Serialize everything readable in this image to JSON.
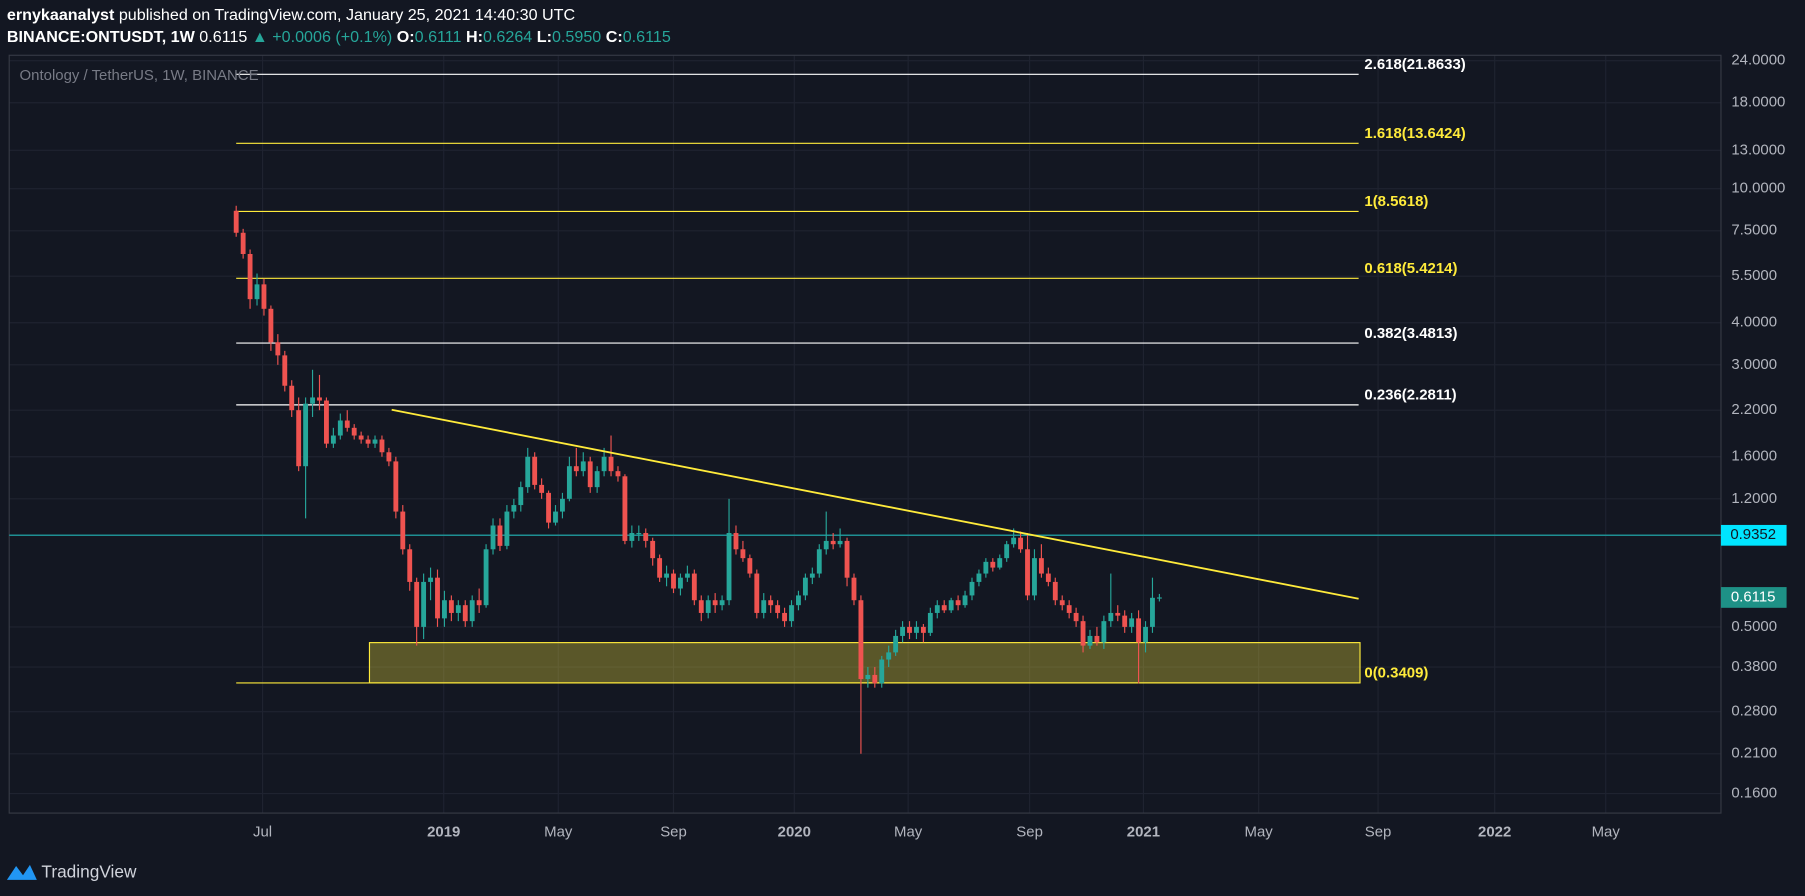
{
  "header": {
    "publisher": "ernykaanalyst",
    "published": "published on TradingView.com, January 25, 2021 14:40:30 UTC",
    "symbol": "BINANCE:ONTUSDT, 1W",
    "price": "0.6115",
    "change": "▲ +0.0006 (+0.1%)",
    "o_label": "O:",
    "o": "0.6111",
    "h_label": "H:",
    "h": "0.6264",
    "l_label": "L:",
    "l": "0.5950",
    "c_label": "C:",
    "c": "0.6115"
  },
  "footer": {
    "brand": "TradingView"
  },
  "chart_data": {
    "type": "candlestick",
    "legend": "Ontology / TetherUS, 1W, BINANCE",
    "log_scale": true,
    "grid": true,
    "up_color": "#26a69a",
    "down_color": "#ef5350",
    "ylim": [
      0.14,
      24.9
    ],
    "yticks": [
      {
        "value": 24,
        "label": "24.0000"
      },
      {
        "value": 18,
        "label": "18.0000"
      },
      {
        "value": 13,
        "label": "13.0000"
      },
      {
        "value": 10,
        "label": "10.0000"
      },
      {
        "value": 7.5,
        "label": "7.5000"
      },
      {
        "value": 5.5,
        "label": "5.5000"
      },
      {
        "value": 4,
        "label": "4.0000"
      },
      {
        "value": 3,
        "label": "3.0000"
      },
      {
        "value": 2.2,
        "label": "2.2000"
      },
      {
        "value": 1.6,
        "label": "1.6000"
      },
      {
        "value": 1.2,
        "label": "1.2000"
      },
      {
        "value": 0.5,
        "label": "0.5000"
      },
      {
        "value": 0.38,
        "label": "0.3800"
      },
      {
        "value": 0.28,
        "label": "0.2800"
      },
      {
        "value": 0.21,
        "label": "0.2100"
      },
      {
        "value": 0.16,
        "label": "0.1600"
      }
    ],
    "xlim": [
      -32.7,
      213.9
    ],
    "xticks": [
      {
        "value": 3.8,
        "label": "Jul"
      },
      {
        "value": 29.9,
        "label": "2019"
      },
      {
        "value": 46.4,
        "label": "May"
      },
      {
        "value": 63.0,
        "label": "Sep"
      },
      {
        "value": 80.4,
        "label": "2020"
      },
      {
        "value": 96.8,
        "label": "May"
      },
      {
        "value": 114.3,
        "label": "Sep"
      },
      {
        "value": 130.7,
        "label": "2021"
      },
      {
        "value": 147.3,
        "label": "May"
      },
      {
        "value": 164.5,
        "label": "Sep"
      },
      {
        "value": 181.3,
        "label": "2022"
      },
      {
        "value": 197.3,
        "label": "May"
      }
    ],
    "ohlc": [
      [
        8.6,
        8.9,
        7.2,
        7.4
      ],
      [
        7.4,
        7.6,
        6.2,
        6.4
      ],
      [
        6.4,
        6.6,
        4.4,
        4.7
      ],
      [
        4.7,
        5.6,
        4.5,
        5.2
      ],
      [
        5.2,
        5.4,
        4.2,
        4.4
      ],
      [
        4.4,
        4.5,
        3.3,
        3.5
      ],
      [
        3.5,
        3.7,
        3.0,
        3.2
      ],
      [
        3.2,
        3.3,
        2.5,
        2.6
      ],
      [
        2.6,
        2.7,
        2.1,
        2.2
      ],
      [
        2.2,
        2.4,
        1.45,
        1.5
      ],
      [
        1.5,
        2.4,
        1.05,
        2.3
      ],
      [
        2.3,
        2.9,
        2.1,
        2.4
      ],
      [
        2.4,
        2.8,
        2.2,
        2.35
      ],
      [
        2.35,
        2.4,
        1.7,
        1.75
      ],
      [
        1.75,
        1.95,
        1.7,
        1.85
      ],
      [
        1.85,
        2.15,
        1.8,
        2.05
      ],
      [
        2.05,
        2.2,
        1.9,
        1.95
      ],
      [
        1.95,
        2.0,
        1.8,
        1.85
      ],
      [
        1.85,
        1.9,
        1.75,
        1.8
      ],
      [
        1.8,
        1.85,
        1.7,
        1.75
      ],
      [
        1.75,
        1.85,
        1.7,
        1.8
      ],
      [
        1.8,
        1.85,
        1.6,
        1.65
      ],
      [
        1.65,
        1.7,
        1.5,
        1.55
      ],
      [
        1.55,
        1.6,
        1.05,
        1.1
      ],
      [
        1.1,
        1.15,
        0.82,
        0.85
      ],
      [
        0.85,
        0.88,
        0.64,
        0.68
      ],
      [
        0.68,
        0.7,
        0.44,
        0.5
      ],
      [
        0.5,
        0.72,
        0.46,
        0.68
      ],
      [
        0.68,
        0.75,
        0.6,
        0.7
      ],
      [
        0.7,
        0.74,
        0.5,
        0.53
      ],
      [
        0.53,
        0.64,
        0.5,
        0.6
      ],
      [
        0.6,
        0.62,
        0.52,
        0.55
      ],
      [
        0.55,
        0.6,
        0.52,
        0.58
      ],
      [
        0.58,
        0.6,
        0.5,
        0.52
      ],
      [
        0.52,
        0.62,
        0.5,
        0.6
      ],
      [
        0.6,
        0.65,
        0.55,
        0.58
      ],
      [
        0.58,
        0.88,
        0.57,
        0.85
      ],
      [
        0.85,
        1.05,
        0.82,
        1.0
      ],
      [
        1.0,
        1.05,
        0.84,
        0.87
      ],
      [
        0.87,
        1.15,
        0.85,
        1.1
      ],
      [
        1.1,
        1.2,
        1.05,
        1.15
      ],
      [
        1.15,
        1.35,
        1.1,
        1.3
      ],
      [
        1.3,
        1.7,
        1.25,
        1.6
      ],
      [
        1.6,
        1.65,
        1.28,
        1.32
      ],
      [
        1.32,
        1.38,
        1.2,
        1.25
      ],
      [
        1.25,
        1.27,
        0.98,
        1.02
      ],
      [
        1.02,
        1.15,
        1.0,
        1.1
      ],
      [
        1.1,
        1.25,
        1.05,
        1.2
      ],
      [
        1.2,
        1.6,
        1.18,
        1.5
      ],
      [
        1.5,
        1.7,
        1.4,
        1.45
      ],
      [
        1.45,
        1.65,
        1.4,
        1.55
      ],
      [
        1.55,
        1.6,
        1.25,
        1.3
      ],
      [
        1.3,
        1.5,
        1.25,
        1.45
      ],
      [
        1.45,
        1.7,
        1.4,
        1.6
      ],
      [
        1.6,
        1.85,
        1.4,
        1.45
      ],
      [
        1.45,
        1.5,
        1.35,
        1.4
      ],
      [
        1.4,
        1.42,
        0.88,
        0.9
      ],
      [
        0.9,
        1.0,
        0.86,
        0.95
      ],
      [
        0.95,
        1.0,
        0.9,
        0.95
      ],
      [
        0.95,
        0.98,
        0.86,
        0.9
      ],
      [
        0.9,
        0.92,
        0.76,
        0.8
      ],
      [
        0.8,
        0.82,
        0.68,
        0.7
      ],
      [
        0.7,
        0.76,
        0.66,
        0.72
      ],
      [
        0.72,
        0.74,
        0.63,
        0.65
      ],
      [
        0.65,
        0.72,
        0.62,
        0.7
      ],
      [
        0.7,
        0.76,
        0.68,
        0.72
      ],
      [
        0.72,
        0.74,
        0.58,
        0.6
      ],
      [
        0.6,
        0.62,
        0.52,
        0.55
      ],
      [
        0.55,
        0.62,
        0.53,
        0.6
      ],
      [
        0.6,
        0.63,
        0.55,
        0.58
      ],
      [
        0.58,
        0.62,
        0.56,
        0.6
      ],
      [
        0.6,
        1.2,
        0.58,
        0.95
      ],
      [
        0.95,
        1.0,
        0.82,
        0.85
      ],
      [
        0.85,
        0.9,
        0.78,
        0.8
      ],
      [
        0.8,
        0.82,
        0.7,
        0.72
      ],
      [
        0.72,
        0.74,
        0.53,
        0.55
      ],
      [
        0.55,
        0.63,
        0.53,
        0.6
      ],
      [
        0.6,
        0.62,
        0.55,
        0.58
      ],
      [
        0.58,
        0.6,
        0.53,
        0.55
      ],
      [
        0.55,
        0.57,
        0.5,
        0.52
      ],
      [
        0.52,
        0.6,
        0.5,
        0.58
      ],
      [
        0.58,
        0.64,
        0.56,
        0.62
      ],
      [
        0.62,
        0.72,
        0.6,
        0.7
      ],
      [
        0.7,
        0.75,
        0.67,
        0.72
      ],
      [
        0.72,
        0.88,
        0.7,
        0.85
      ],
      [
        0.85,
        1.1,
        0.82,
        0.9
      ],
      [
        0.9,
        0.95,
        0.85,
        0.88
      ],
      [
        0.88,
        0.98,
        0.86,
        0.9
      ],
      [
        0.9,
        0.92,
        0.66,
        0.7
      ],
      [
        0.7,
        0.72,
        0.58,
        0.6
      ],
      [
        0.6,
        0.62,
        0.21,
        0.35
      ],
      [
        0.35,
        0.38,
        0.33,
        0.36
      ],
      [
        0.36,
        0.38,
        0.33,
        0.34
      ],
      [
        0.34,
        0.41,
        0.33,
        0.4
      ],
      [
        0.4,
        0.44,
        0.38,
        0.42
      ],
      [
        0.42,
        0.49,
        0.41,
        0.47
      ],
      [
        0.47,
        0.52,
        0.45,
        0.5
      ],
      [
        0.5,
        0.52,
        0.46,
        0.48
      ],
      [
        0.48,
        0.52,
        0.46,
        0.5
      ],
      [
        0.5,
        0.51,
        0.45,
        0.48
      ],
      [
        0.48,
        0.57,
        0.47,
        0.55
      ],
      [
        0.55,
        0.6,
        0.53,
        0.58
      ],
      [
        0.58,
        0.6,
        0.55,
        0.56
      ],
      [
        0.56,
        0.61,
        0.55,
        0.6
      ],
      [
        0.6,
        0.62,
        0.56,
        0.58
      ],
      [
        0.58,
        0.64,
        0.57,
        0.62
      ],
      [
        0.62,
        0.7,
        0.6,
        0.68
      ],
      [
        0.68,
        0.74,
        0.66,
        0.72
      ],
      [
        0.72,
        0.8,
        0.7,
        0.78
      ],
      [
        0.78,
        0.8,
        0.73,
        0.75
      ],
      [
        0.75,
        0.82,
        0.74,
        0.8
      ],
      [
        0.8,
        0.9,
        0.78,
        0.88
      ],
      [
        0.88,
        0.98,
        0.86,
        0.92
      ],
      [
        0.92,
        0.96,
        0.83,
        0.85
      ],
      [
        0.85,
        0.95,
        0.6,
        0.62
      ],
      [
        0.62,
        0.85,
        0.6,
        0.8
      ],
      [
        0.8,
        0.88,
        0.7,
        0.72
      ],
      [
        0.72,
        0.75,
        0.66,
        0.68
      ],
      [
        0.68,
        0.7,
        0.58,
        0.6
      ],
      [
        0.6,
        0.62,
        0.56,
        0.58
      ],
      [
        0.58,
        0.6,
        0.53,
        0.55
      ],
      [
        0.55,
        0.57,
        0.5,
        0.52
      ],
      [
        0.52,
        0.54,
        0.42,
        0.44
      ],
      [
        0.44,
        0.49,
        0.43,
        0.47
      ],
      [
        0.47,
        0.5,
        0.44,
        0.45
      ],
      [
        0.45,
        0.54,
        0.43,
        0.52
      ],
      [
        0.52,
        0.72,
        0.5,
        0.55
      ],
      [
        0.55,
        0.58,
        0.52,
        0.54
      ],
      [
        0.54,
        0.56,
        0.48,
        0.5
      ],
      [
        0.5,
        0.55,
        0.48,
        0.53
      ],
      [
        0.53,
        0.56,
        0.34,
        0.45
      ],
      [
        0.45,
        0.52,
        0.42,
        0.5
      ],
      [
        0.5,
        0.7,
        0.48,
        0.61
      ],
      [
        0.6111,
        0.6264,
        0.595,
        0.6115
      ]
    ],
    "fib_range": [
      0,
      161.7
    ],
    "fib_levels": [
      {
        "label": "2.618(21.8633)",
        "value": 21.8633,
        "color": "#ffffff"
      },
      {
        "label": "1.618(13.6424)",
        "value": 13.6424,
        "color": "#ffeb3b"
      },
      {
        "label": "1(8.5618)",
        "value": 8.5618,
        "color": "#ffeb3b"
      },
      {
        "label": "0.618(5.4214)",
        "value": 5.4214,
        "color": "#ffeb3b"
      },
      {
        "label": "0.382(3.4813)",
        "value": 3.4813,
        "color": "#ffffff"
      },
      {
        "label": "0.236(2.2811)",
        "value": 2.2811,
        "color": "#ffffff"
      },
      {
        "label": "0(0.3409)",
        "value": 0.3409,
        "color": "#ffeb3b"
      }
    ],
    "trendline": {
      "x": [
        22.4,
        161.7
      ],
      "y": [
        2.206,
        0.606
      ],
      "color": "#ffeb3b"
    },
    "zone": {
      "x": [
        19.2,
        161.9
      ],
      "y": [
        0.3409,
        0.449
      ],
      "color": "#ffeb3b"
    },
    "hline": {
      "value": 0.9352,
      "color": "#00e5ff"
    },
    "last_price": {
      "value": 0.6115,
      "color": "#1e9186"
    }
  }
}
